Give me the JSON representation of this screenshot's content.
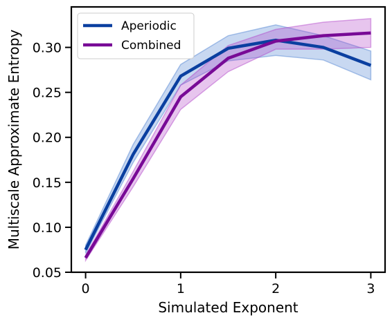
{
  "chart_data": {
    "type": "line",
    "title": "",
    "xlabel": "Simulated Exponent",
    "ylabel": "Multiscale Approximate Entropy",
    "xlim": [
      -0.15,
      3.15
    ],
    "ylim": [
      0.05,
      0.345
    ],
    "x_ticks": [
      0,
      1,
      2,
      3
    ],
    "x_tick_labels": [
      "0",
      "1",
      "2",
      "3"
    ],
    "y_ticks": [
      0.05,
      0.1,
      0.15,
      0.2,
      0.25,
      0.3
    ],
    "y_tick_labels": [
      "0.05",
      "0.10",
      "0.15",
      "0.20",
      "0.25",
      "0.30"
    ],
    "grid": false,
    "legend_position": "top-left",
    "x": [
      0,
      0.5,
      1,
      1.5,
      2,
      2.5,
      3
    ],
    "series": [
      {
        "name": "Aperiodic",
        "color": "#0a3fa0",
        "band_color": "#4a7fd0",
        "values": [
          0.075,
          0.181,
          0.268,
          0.299,
          0.308,
          0.3,
          0.28
        ],
        "lower": [
          0.071,
          0.172,
          0.258,
          0.285,
          0.291,
          0.286,
          0.264
        ],
        "upper": [
          0.08,
          0.192,
          0.281,
          0.313,
          0.325,
          0.313,
          0.296
        ]
      },
      {
        "name": "Combined",
        "color": "#780a96",
        "band_color": "#b040c8",
        "values": [
          0.066,
          0.154,
          0.245,
          0.288,
          0.307,
          0.313,
          0.316
        ],
        "lower": [
          0.063,
          0.145,
          0.231,
          0.273,
          0.298,
          0.298,
          0.3
        ],
        "upper": [
          0.069,
          0.162,
          0.258,
          0.302,
          0.32,
          0.328,
          0.332
        ]
      }
    ]
  }
}
